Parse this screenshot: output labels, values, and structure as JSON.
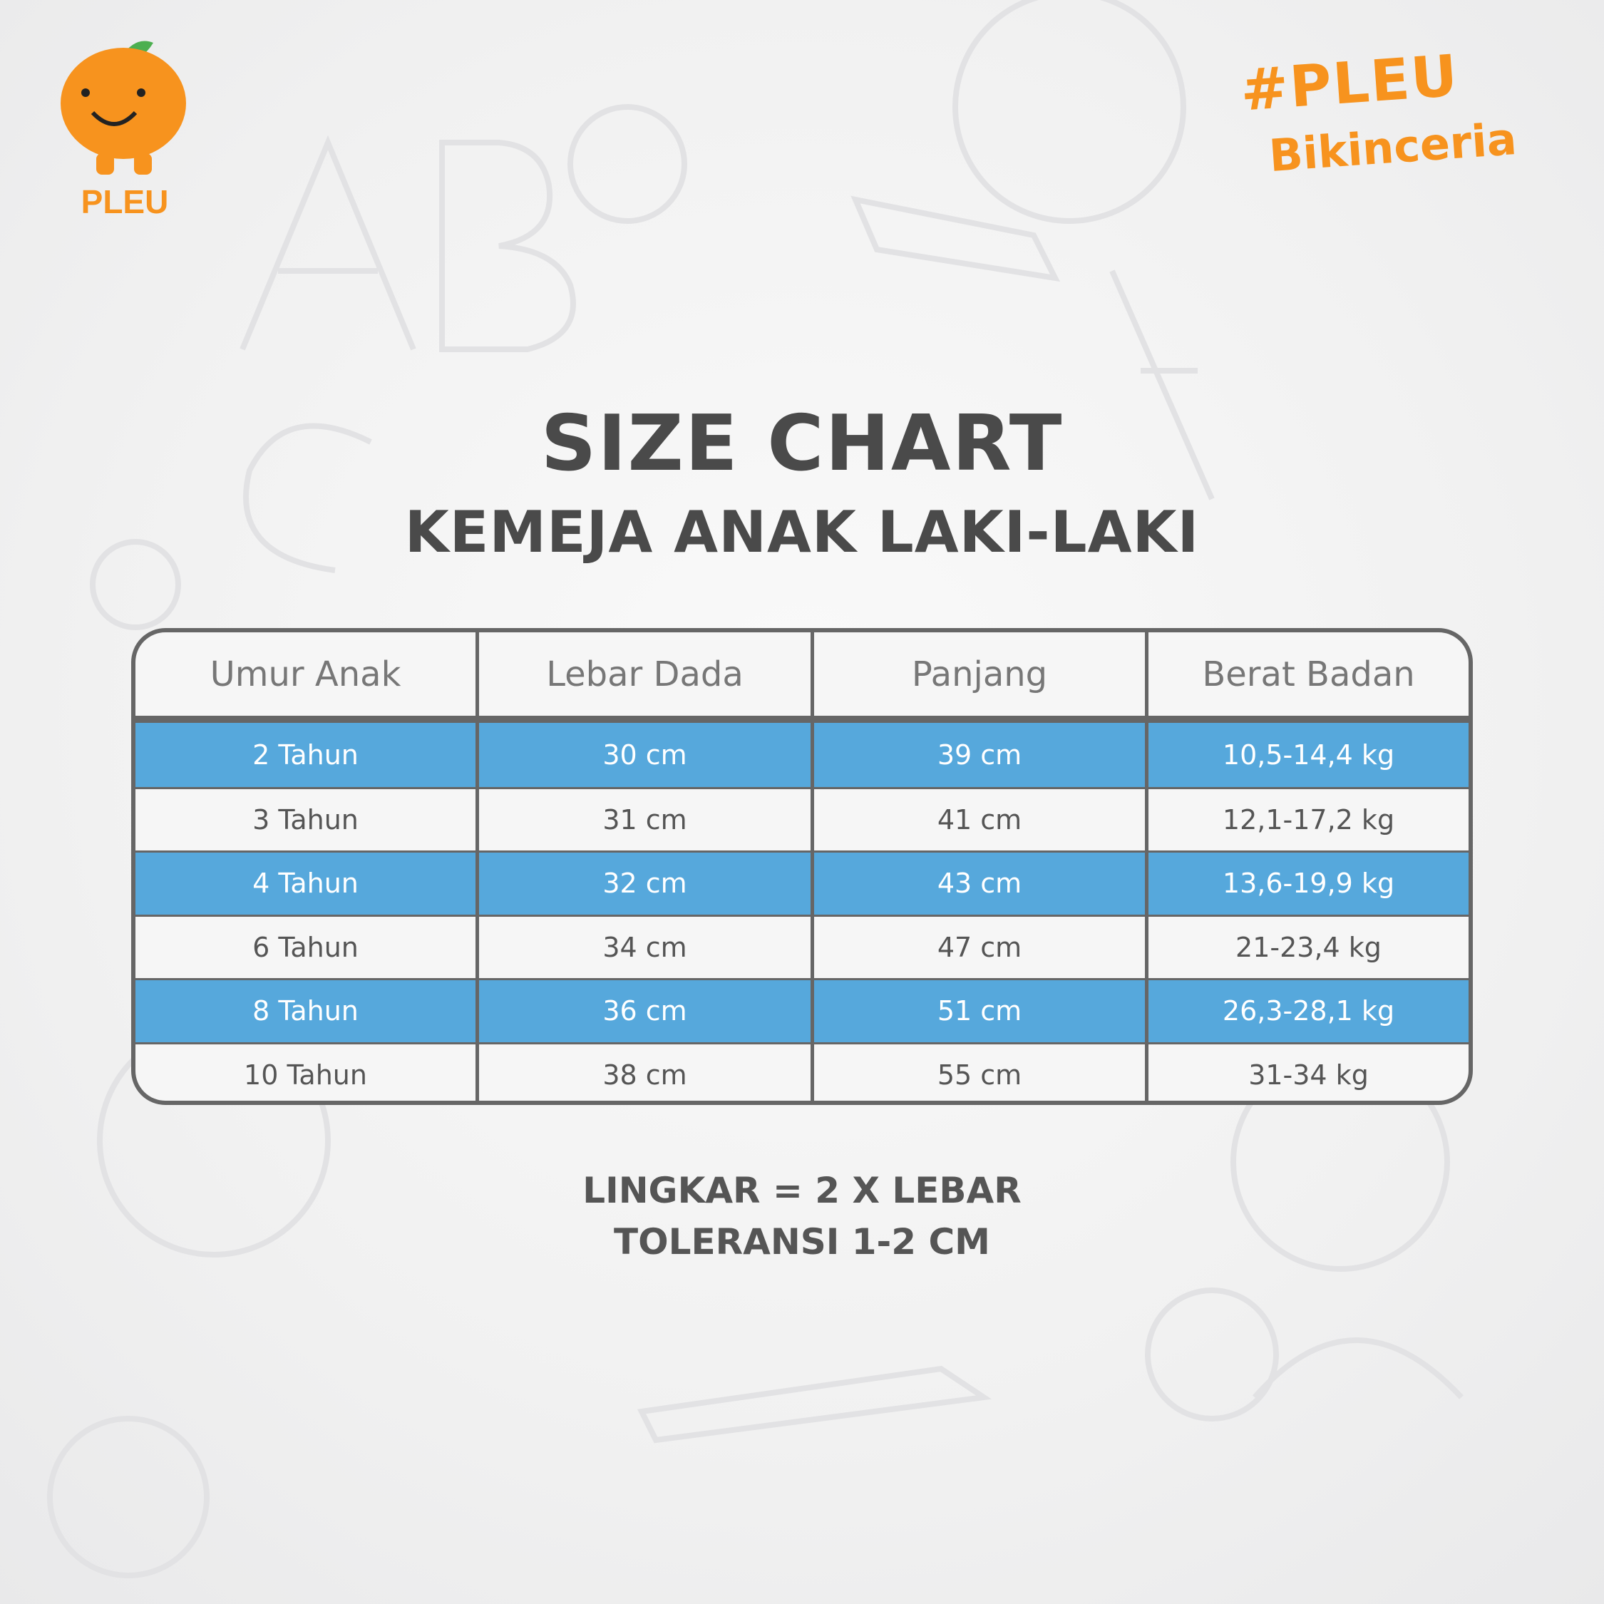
{
  "brand": {
    "logo_text": "PLEU",
    "hashtag_line1": "#PLEU",
    "hashtag_line2": "Bikinceria",
    "accent_color": "#f7931e"
  },
  "title": "SIZE CHART",
  "subtitle": "KEMEJA ANAK LAKI-LAKI",
  "table": {
    "row_highlight_color": "#56a8dc",
    "headers": [
      "Umur Anak",
      "Lebar Dada",
      "Panjang",
      "Berat Badan"
    ],
    "rows": [
      [
        "2 Tahun",
        "30 cm",
        "39 cm",
        "10,5-14,4 kg"
      ],
      [
        "3 Tahun",
        "31 cm",
        "41 cm",
        "12,1-17,2 kg"
      ],
      [
        "4 Tahun",
        "32 cm",
        "43 cm",
        "13,6-19,9 kg"
      ],
      [
        "6 Tahun",
        "34 cm",
        "47 cm",
        "21-23,4 kg"
      ],
      [
        "8 Tahun",
        "36 cm",
        "51 cm",
        "26,3-28,1 kg"
      ],
      [
        "10 Tahun",
        "38 cm",
        "55 cm",
        "31-34 kg"
      ]
    ]
  },
  "notes": [
    "LINGKAR = 2 X LEBAR",
    "TOLERANSI 1-2 CM"
  ]
}
